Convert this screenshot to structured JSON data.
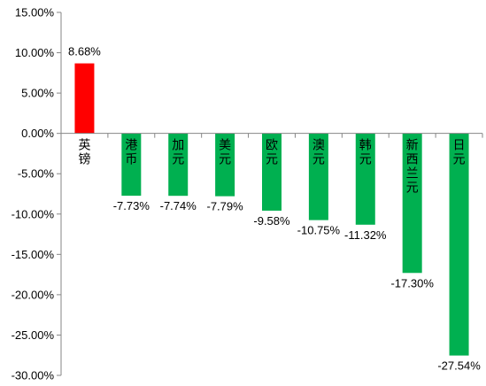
{
  "chart_data": {
    "type": "bar",
    "categories": [
      "英镑",
      "港币",
      "加元",
      "美元",
      "欧元",
      "澳元",
      "韩元",
      "新西兰元",
      "日元"
    ],
    "values": [
      8.68,
      -7.73,
      -7.74,
      -7.79,
      -9.58,
      -10.75,
      -11.32,
      -17.3,
      -27.54
    ],
    "data_labels": [
      "8.68%",
      "-7.73%",
      "-7.74%",
      "-7.79%",
      "-9.58%",
      "-10.75%",
      "-11.32%",
      "-17.30%",
      "-27.54%"
    ],
    "colors": [
      "#ff0000",
      "#00b050",
      "#00b050",
      "#00b050",
      "#00b050",
      "#00b050",
      "#00b050",
      "#00b050",
      "#00b050"
    ],
    "ylim": [
      -30,
      15
    ],
    "ytick_values": [
      15,
      10,
      5,
      0,
      -5,
      -10,
      -15,
      -20,
      -25,
      -30
    ],
    "ytick_labels": [
      "15.00%",
      "10.00%",
      "5.00%",
      "0.00%",
      "-5.00%",
      "-10.00%",
      "-15.00%",
      "-20.00%",
      "-25.00%",
      "-30.00%"
    ],
    "title": "",
    "xlabel": "",
    "ylabel": "",
    "grid": false,
    "legend": "none",
    "category_label_orientation": "vertical-stacked"
  }
}
